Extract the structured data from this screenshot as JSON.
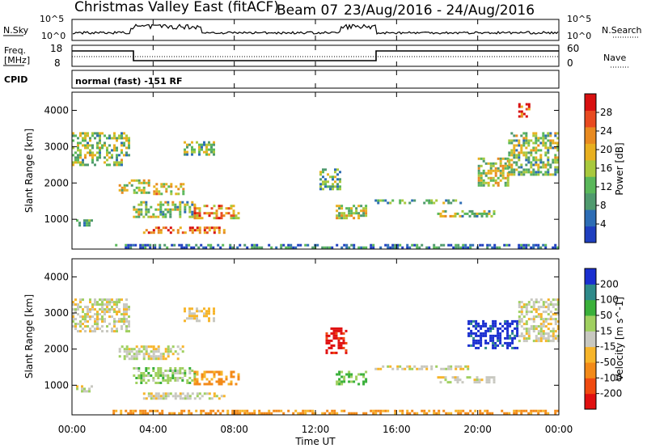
{
  "header": {
    "title": "Christmas Valley East (fitACF)",
    "beam": "Beam 07",
    "date_range": "23/Aug/2016 - 24/Aug/2016"
  },
  "status_panels": {
    "nsky_label": "N.Sky",
    "nsearch_label": "N.Search",
    "noise_ticks": [
      "10^5",
      "10^0"
    ],
    "freq_label_1": "Freq.",
    "freq_label_2": "[MHz]",
    "freq_ticks": [
      "18",
      "8"
    ],
    "nave_label": "Nave",
    "nave_ticks": [
      "60",
      "0"
    ],
    "cpid_label": "CPID",
    "cpid_text": "normal (fast) -151 RF"
  },
  "x_axis": {
    "label": "Time UT",
    "ticks": [
      "00:00",
      "04:00",
      "08:00",
      "12:00",
      "16:00",
      "20:00",
      "00:00"
    ]
  },
  "colors": {
    "power_scale": [
      "#1f3fbf",
      "#2d6db5",
      "#4f9a6e",
      "#5ab85a",
      "#a8c93d",
      "#e8b020",
      "#e88a20",
      "#e84a20",
      "#d81010"
    ],
    "velocity_scale": [
      "#e01010",
      "#f04a10",
      "#f38a18",
      "#f7b52a",
      "#c8c8c0",
      "#a0d060",
      "#3ab03a",
      "#2e8a8a",
      "#1a2fd0"
    ]
  },
  "chart_data": [
    {
      "type": "heatmap",
      "title": "",
      "xlabel": "Time UT",
      "ylabel": "Slant Range [km]",
      "xlim": [
        0,
        24
      ],
      "ylim": [
        180,
        4500
      ],
      "yticks": [
        1000,
        2000,
        3000,
        4000
      ],
      "colorbar": {
        "label": "Power [dB]",
        "ticks": [
          4,
          8,
          12,
          16,
          20,
          24,
          28
        ],
        "range": [
          0,
          32
        ]
      },
      "patches": [
        {
          "t0": 0.0,
          "t1": 2.8,
          "r0": 2500,
          "r1": 3400,
          "value": 14
        },
        {
          "t0": 0.2,
          "t1": 1.0,
          "r0": 800,
          "r1": 1000,
          "value": 12
        },
        {
          "t0": 2.3,
          "t1": 3.8,
          "r0": 1700,
          "r1": 2100,
          "value": 16
        },
        {
          "t0": 3.0,
          "t1": 6.0,
          "r0": 1050,
          "r1": 1500,
          "value": 14
        },
        {
          "t0": 4.0,
          "t1": 5.5,
          "r0": 1700,
          "r1": 2000,
          "value": 18
        },
        {
          "t0": 5.5,
          "t1": 7.0,
          "r0": 2800,
          "r1": 3150,
          "value": 12
        },
        {
          "t0": 6.0,
          "t1": 8.2,
          "r0": 1050,
          "r1": 1400,
          "value": 22
        },
        {
          "t0": 3.5,
          "t1": 7.5,
          "r0": 600,
          "r1": 800,
          "value": 26
        },
        {
          "t0": 2.0,
          "t1": 24.0,
          "r0": 200,
          "r1": 320,
          "value": 6
        },
        {
          "t0": 12.2,
          "t1": 13.2,
          "r0": 1800,
          "r1": 2400,
          "value": 12
        },
        {
          "t0": 13.0,
          "t1": 14.5,
          "r0": 1000,
          "r1": 1400,
          "value": 16
        },
        {
          "t0": 14.8,
          "t1": 19.5,
          "r0": 1450,
          "r1": 1550,
          "value": 10
        },
        {
          "t0": 18.0,
          "t1": 20.8,
          "r0": 1050,
          "r1": 1250,
          "value": 14
        },
        {
          "t0": 20.0,
          "t1": 21.5,
          "r0": 1900,
          "r1": 2700,
          "value": 16
        },
        {
          "t0": 21.5,
          "t1": 24.0,
          "r0": 2200,
          "r1": 3400,
          "value": 14
        },
        {
          "t0": 22.0,
          "t1": 22.5,
          "r0": 3800,
          "r1": 4200,
          "value": 28
        }
      ]
    },
    {
      "type": "heatmap",
      "title": "",
      "xlabel": "Time UT",
      "ylabel": "Slant Range [km]",
      "xlim": [
        0,
        24
      ],
      "ylim": [
        180,
        4500
      ],
      "yticks": [
        1000,
        2000,
        3000,
        4000
      ],
      "colorbar": {
        "label": "Velocity [m s^-1]",
        "ticks": [
          -200,
          -100,
          -50,
          -15,
          15,
          50,
          100,
          200
        ]
      },
      "patches": [
        {
          "t0": 0.0,
          "t1": 2.8,
          "r0": 2500,
          "r1": 3400,
          "value": 0
        },
        {
          "t0": 0.2,
          "t1": 1.0,
          "r0": 800,
          "r1": 1000,
          "value": 0
        },
        {
          "t0": 2.3,
          "t1": 5.5,
          "r0": 1700,
          "r1": 2100,
          "value": 0
        },
        {
          "t0": 3.0,
          "t1": 6.0,
          "r0": 1050,
          "r1": 1500,
          "value": 30
        },
        {
          "t0": 5.5,
          "t1": 7.0,
          "r0": 2800,
          "r1": 3150,
          "value": -20
        },
        {
          "t0": 6.0,
          "t1": 8.2,
          "r0": 1050,
          "r1": 1400,
          "value": -60
        },
        {
          "t0": 3.5,
          "t1": 7.5,
          "r0": 600,
          "r1": 800,
          "value": 0
        },
        {
          "t0": 2.0,
          "t1": 24.0,
          "r0": 200,
          "r1": 320,
          "value": -60
        },
        {
          "t0": 12.5,
          "t1": 13.5,
          "r0": 1900,
          "r1": 2600,
          "value": -220
        },
        {
          "t0": 13.0,
          "t1": 14.5,
          "r0": 1000,
          "r1": 1400,
          "value": 60
        },
        {
          "t0": 14.8,
          "t1": 19.5,
          "r0": 1450,
          "r1": 1550,
          "value": 0
        },
        {
          "t0": 18.0,
          "t1": 20.8,
          "r0": 1050,
          "r1": 1250,
          "value": 0
        },
        {
          "t0": 19.5,
          "t1": 22.0,
          "r0": 2000,
          "r1": 2800,
          "value": 220
        },
        {
          "t0": 22.0,
          "t1": 24.0,
          "r0": 2200,
          "r1": 3400,
          "value": 0
        }
      ]
    }
  ]
}
